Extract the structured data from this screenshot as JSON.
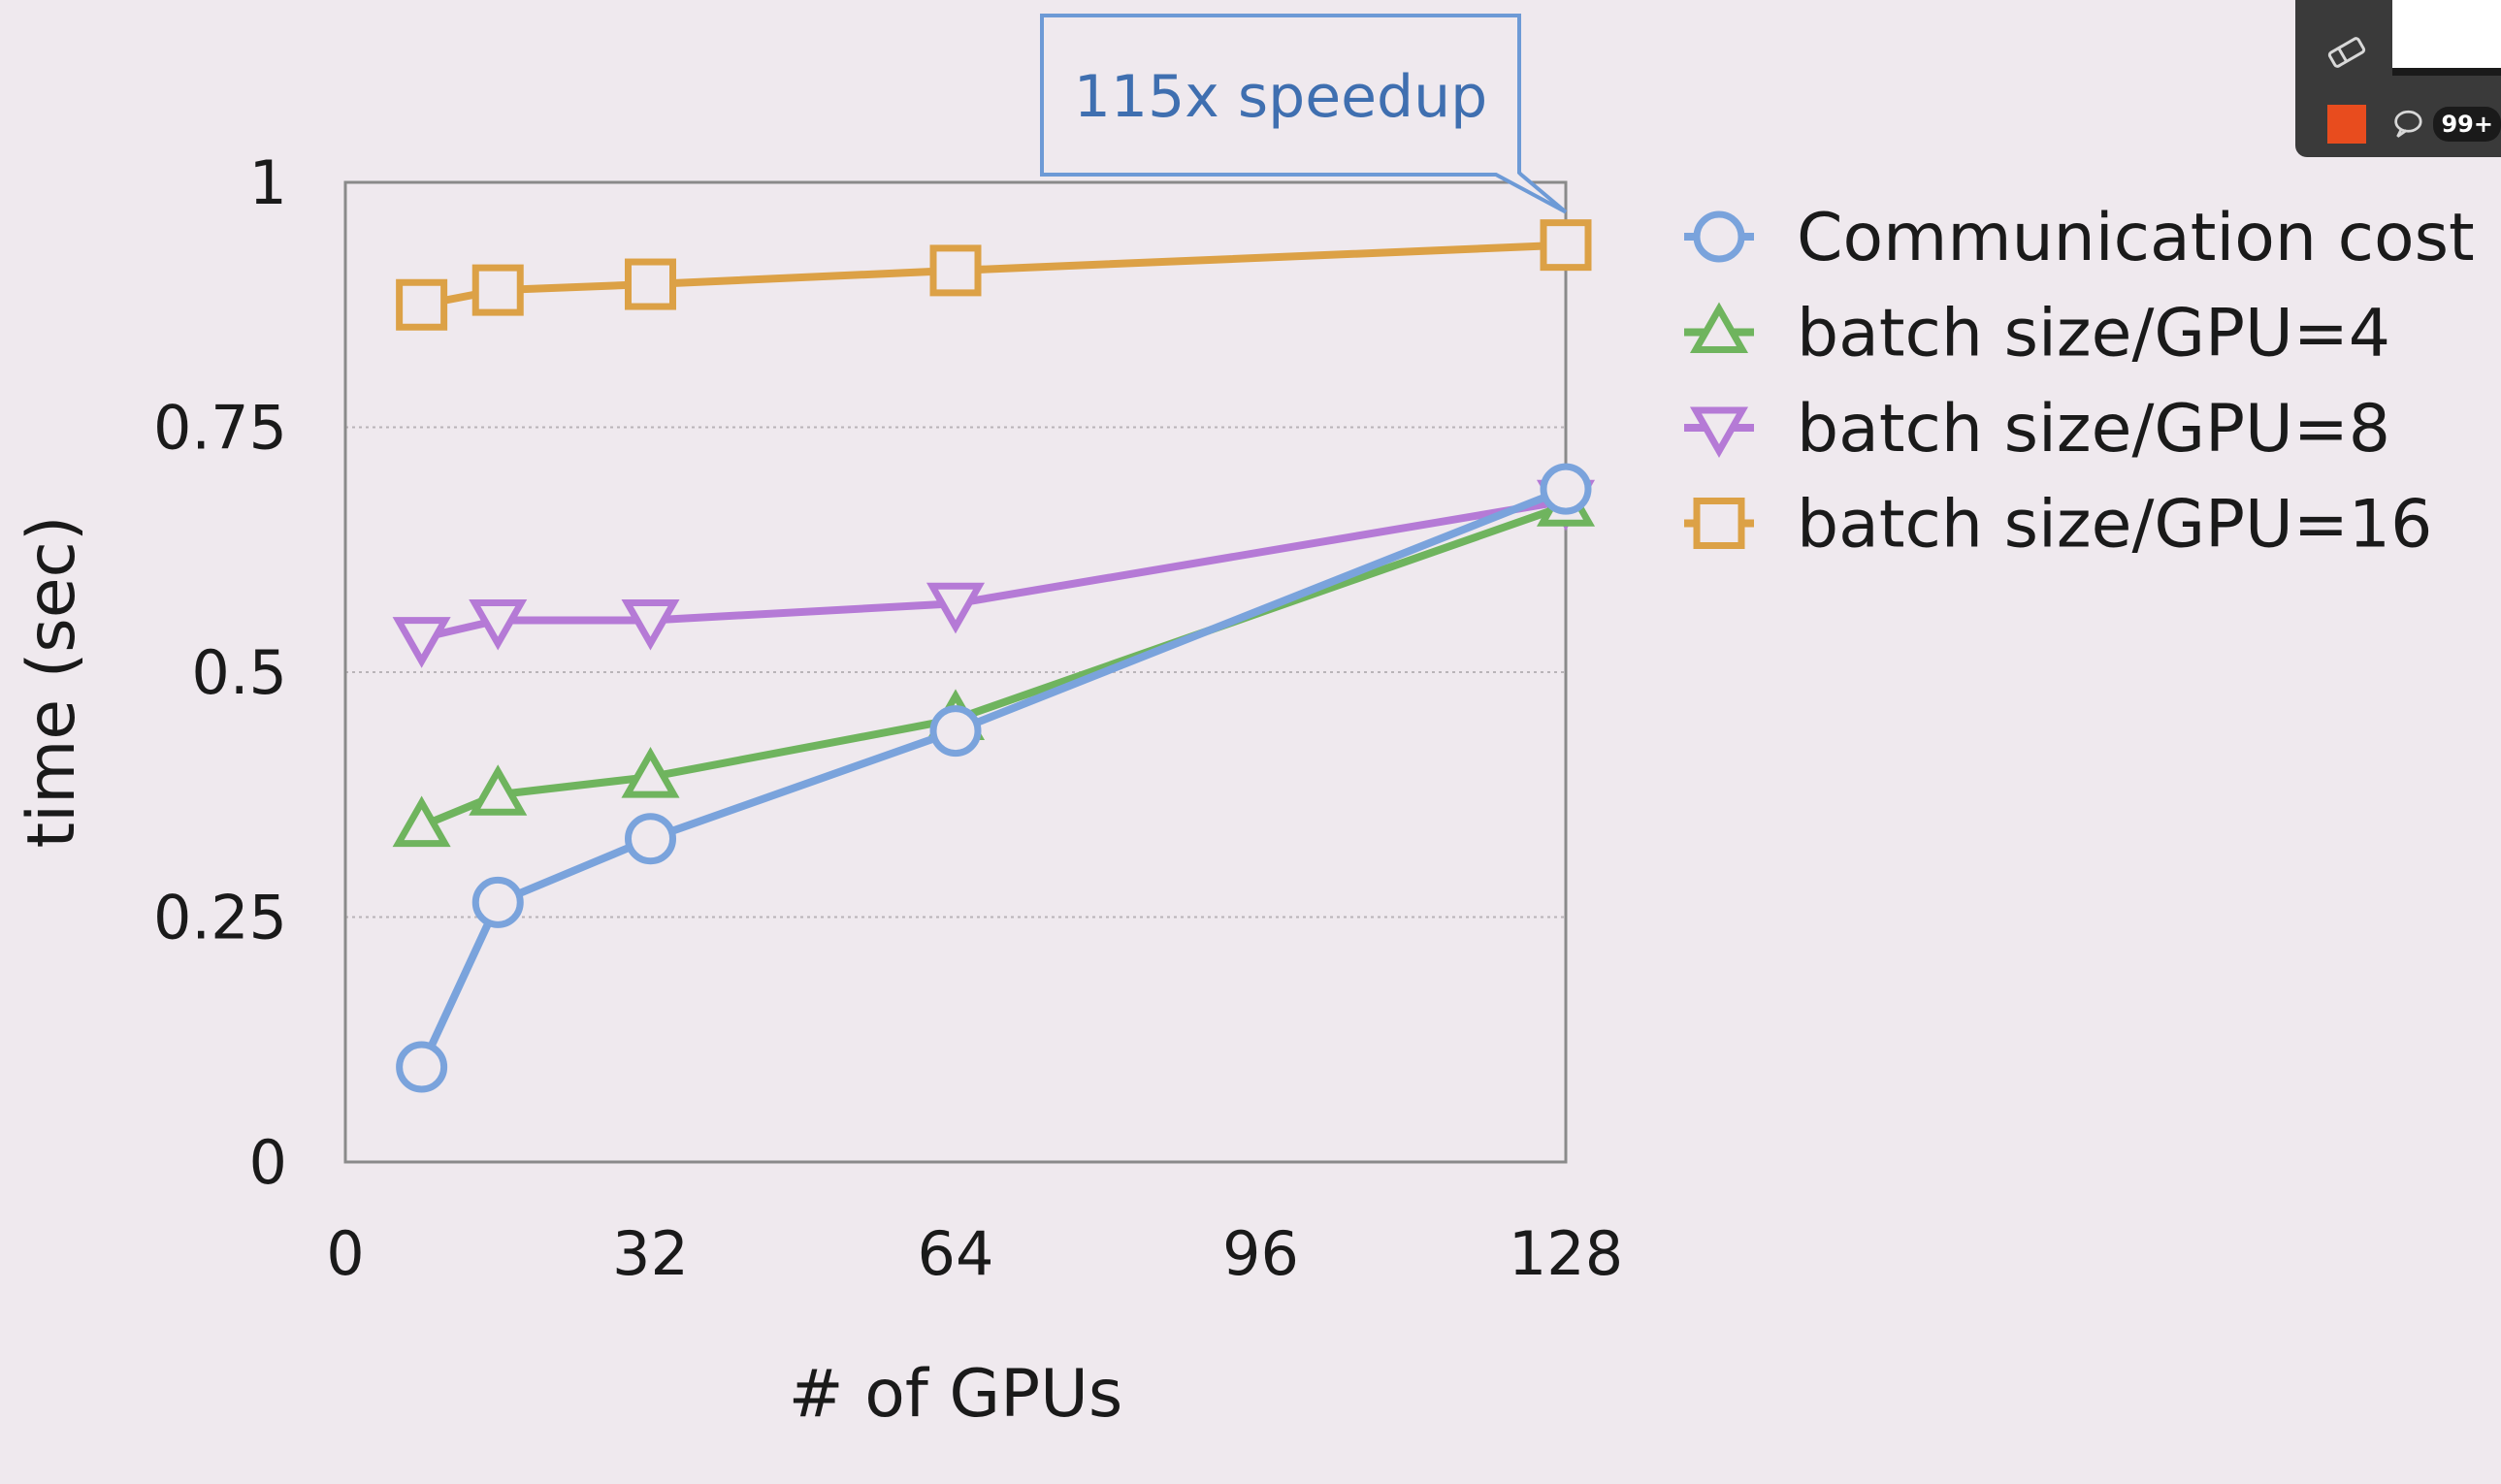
{
  "chart_data": {
    "type": "line",
    "xlabel": "# of GPUs",
    "ylabel": "time (sec)",
    "xlim": [
      0,
      128
    ],
    "ylim": [
      0,
      1
    ],
    "xticks": [
      "0",
      "32",
      "64",
      "96",
      "128"
    ],
    "yticks": [
      "0",
      "0.25",
      "0.5",
      "0.75",
      "1"
    ],
    "grid": "horizontal dotted",
    "legend_position": "right",
    "x": [
      8,
      16,
      32,
      64,
      128
    ],
    "series": [
      {
        "name": "Communication cost",
        "marker": "circle",
        "color": "#7aa3dc",
        "values": [
          0.097,
          0.265,
          0.33,
          0.44,
          0.687
        ]
      },
      {
        "name": "batch size/GPU=4",
        "marker": "triangle-up",
        "color": "#6fb45e",
        "values": [
          0.343,
          0.375,
          0.393,
          0.452,
          0.67
        ]
      },
      {
        "name": "batch size/GPU=8",
        "marker": "triangle-down",
        "color": "#b57ad6",
        "values": [
          0.535,
          0.553,
          0.553,
          0.57,
          0.675
        ]
      },
      {
        "name": "batch size/GPU=16",
        "marker": "square",
        "color": "#dca146",
        "values": [
          0.875,
          0.89,
          0.896,
          0.91,
          0.936
        ]
      }
    ],
    "annotation": {
      "text": "115x speedup",
      "x": 128,
      "y": 0.936,
      "color": "#3f6fb0"
    }
  },
  "toolbar": {
    "eraser_icon": "eraser-icon",
    "color_swatch": "#e84c1e",
    "chat_icon": "chat-icon",
    "chat_badge": "99+"
  }
}
